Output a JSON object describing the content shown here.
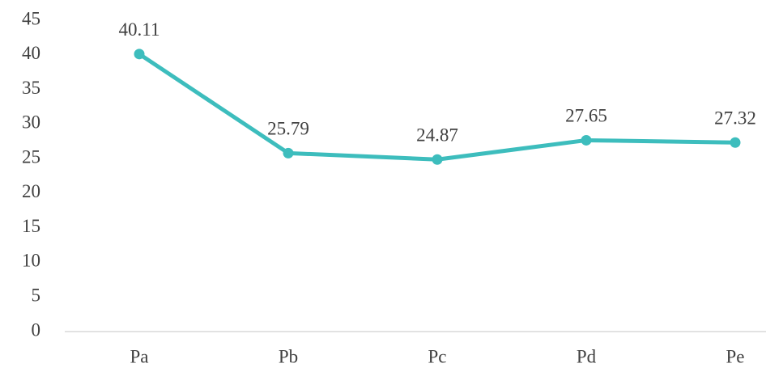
{
  "chart_data": {
    "type": "line",
    "categories": [
      "Pa",
      "Pb",
      "Pc",
      "Pd",
      "Pe"
    ],
    "values": [
      40.11,
      25.79,
      24.87,
      27.65,
      27.32
    ],
    "color": "#3dbdbd",
    "ylim": [
      0,
      45
    ],
    "yticks": [
      0,
      5,
      10,
      15,
      20,
      25,
      30,
      35,
      40,
      45
    ],
    "grid": false,
    "data_labels": true
  }
}
